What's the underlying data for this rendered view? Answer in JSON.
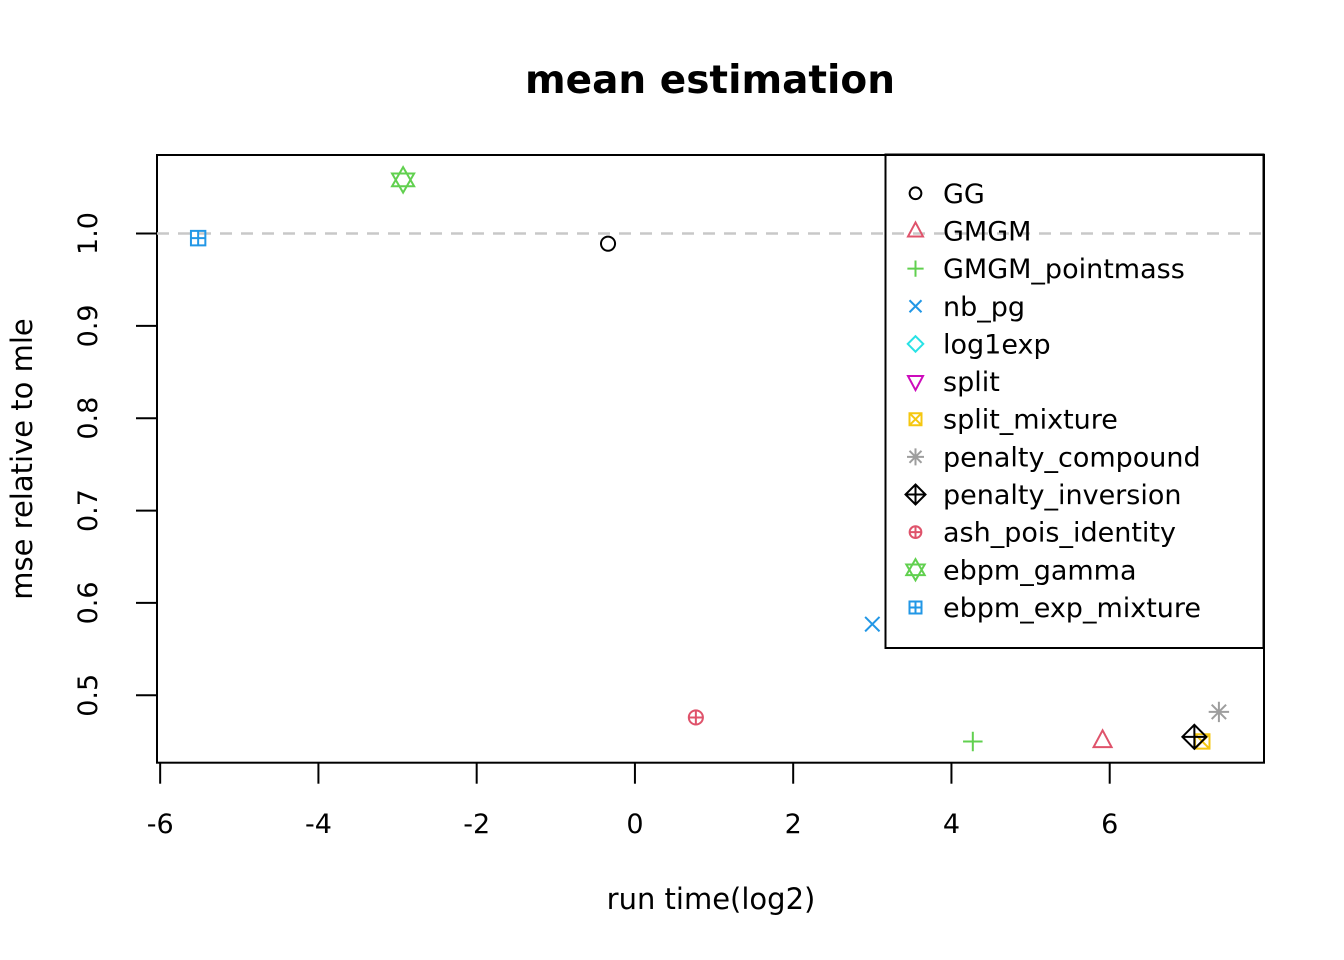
{
  "title": "mean estimation",
  "axes": {
    "xlabel": "run time(log2)",
    "ylabel": "mse relative to mle",
    "x_ticks": [
      -6,
      -4,
      -2,
      0,
      2,
      4,
      6
    ],
    "y_ticks": [
      0.5,
      0.6,
      0.7,
      0.8,
      0.9,
      1.0
    ]
  },
  "reference_line": {
    "y": 1.0,
    "color": "#c8c8c8",
    "style": "dashed"
  },
  "chart_data": {
    "type": "scatter",
    "title": "mean estimation",
    "xlabel": "run time(log2)",
    "ylabel": "mse relative to mle",
    "xlim": [
      -6.04,
      7.95
    ],
    "ylim": [
      0.427,
      1.085
    ],
    "x_ticks": [
      -6,
      -4,
      -2,
      0,
      2,
      4,
      6
    ],
    "y_ticks": [
      0.5,
      0.6,
      0.7,
      0.8,
      0.9,
      1.0
    ],
    "grid": false,
    "legend_position": "top-right",
    "hline": 1.0,
    "series": [
      {
        "name": "GG",
        "marker": "circle",
        "color": "#000000",
        "points": [
          [
            -0.34,
            0.989
          ]
        ]
      },
      {
        "name": "GMGM",
        "marker": "triangle-up",
        "color": "#DF536B",
        "points": [
          [
            5.91,
            0.451
          ]
        ]
      },
      {
        "name": "GMGM_pointmass",
        "marker": "plus",
        "color": "#61D04F",
        "points": [
          [
            4.27,
            0.45
          ]
        ]
      },
      {
        "name": "nb_pg",
        "marker": "x",
        "color": "#2297E6",
        "points": [
          [
            3.0,
            0.577
          ]
        ]
      },
      {
        "name": "log1exp",
        "marker": "diamond",
        "color": "#28E2E5",
        "points": []
      },
      {
        "name": "split",
        "marker": "triangle-down",
        "color": "#CD0BBC",
        "points": []
      },
      {
        "name": "split_mixture",
        "marker": "square-x",
        "color": "#F5C710",
        "points": [
          [
            7.17,
            0.45
          ]
        ]
      },
      {
        "name": "penalty_compound",
        "marker": "asterisk",
        "color": "#9E9E9E",
        "points": [
          [
            7.38,
            0.482
          ]
        ]
      },
      {
        "name": "penalty_inversion",
        "marker": "diamond-plus",
        "color": "#000000",
        "points": [
          [
            7.07,
            0.455
          ]
        ]
      },
      {
        "name": "ash_pois_identity",
        "marker": "circle-plus",
        "color": "#DF536B",
        "points": [
          [
            0.77,
            0.476
          ]
        ]
      },
      {
        "name": "ebpm_gamma",
        "marker": "hexagram",
        "color": "#61D04F",
        "points": [
          [
            -2.93,
            1.058
          ]
        ]
      },
      {
        "name": "ebpm_exp_mixture",
        "marker": "square-plus",
        "color": "#2297E6",
        "points": [
          [
            -5.52,
            0.995
          ]
        ]
      }
    ]
  }
}
